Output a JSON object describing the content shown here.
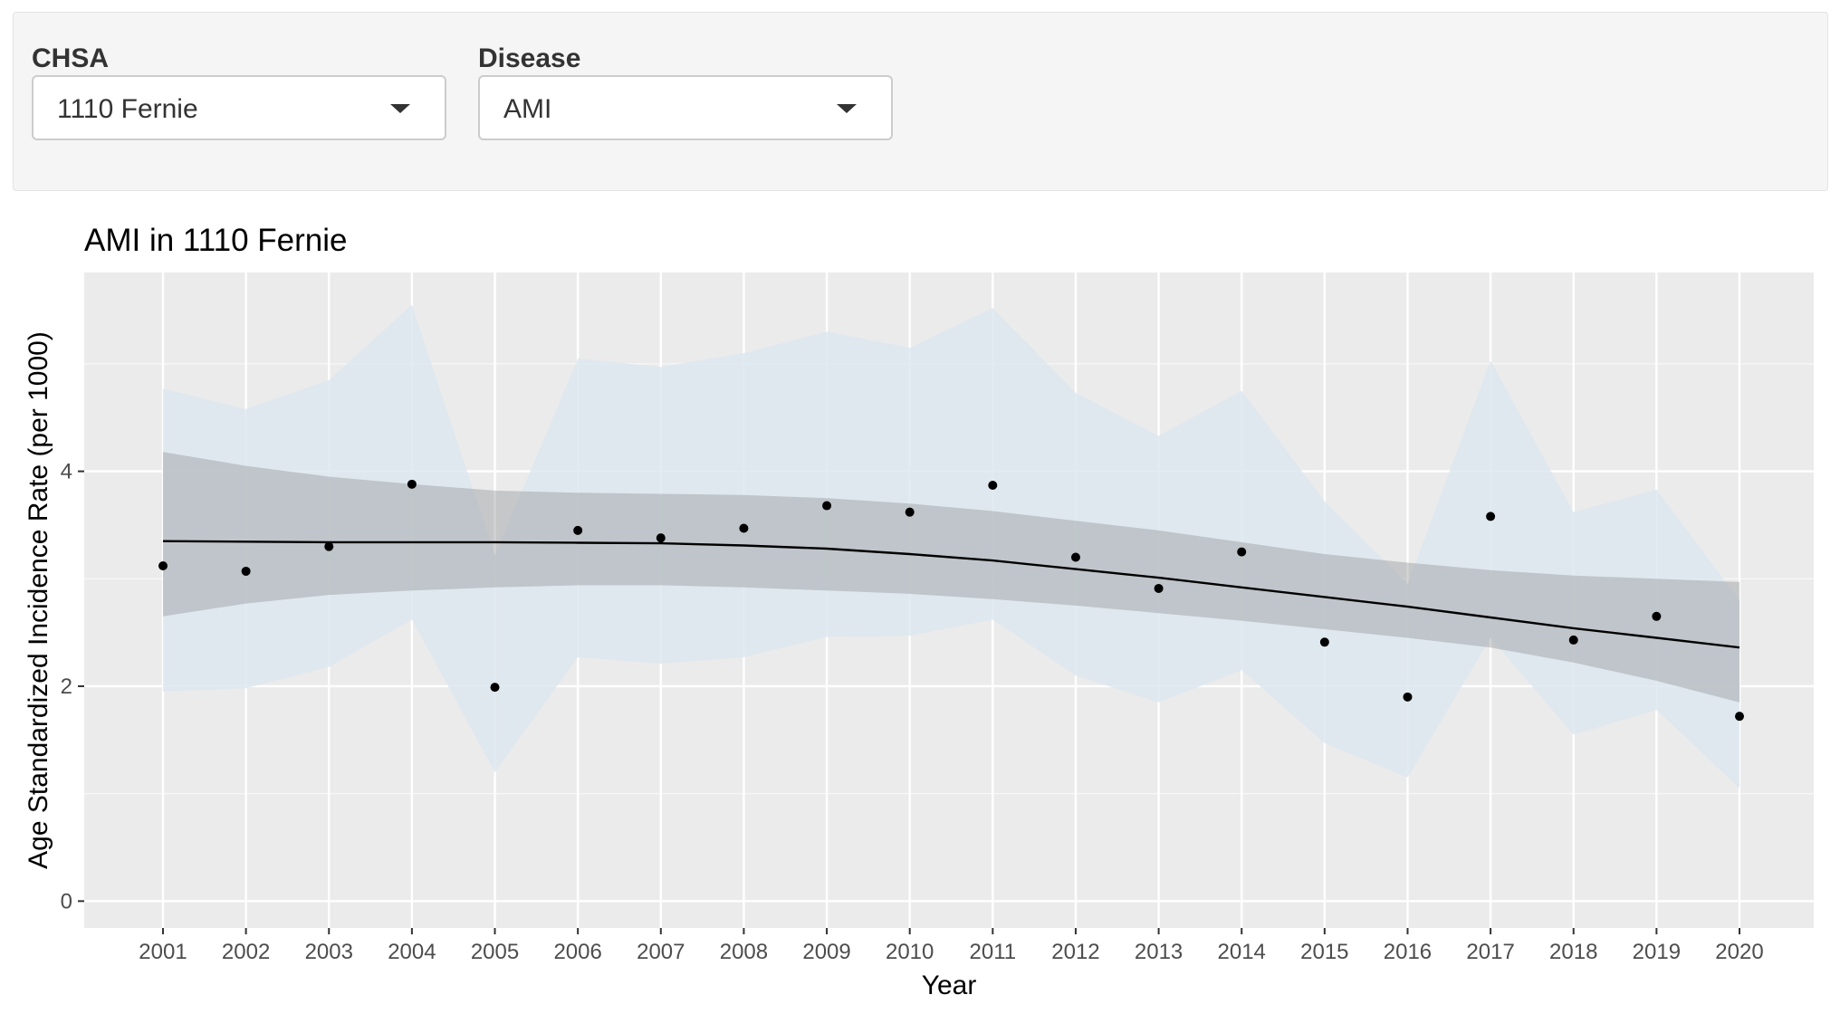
{
  "controls": {
    "chsa": {
      "label": "CHSA",
      "value": "1110 Fernie",
      "icon": "chevron-down-icon"
    },
    "disease": {
      "label": "Disease",
      "value": "AMI",
      "icon": "chevron-down-icon"
    }
  },
  "colors": {
    "panel_bg": "#f5f5f5",
    "plot_bg": "#ebebeb",
    "grid": "#ffffff",
    "band": "#dde7ee",
    "ribbon": "#8f9294",
    "point": "#000000"
  },
  "chart_data": {
    "type": "scatter",
    "title": "AMI in 1110 Fernie",
    "xlabel": "Year",
    "ylabel": "Age Standardized Incidence Rate (per 1000)",
    "ylim": [
      -0.25,
      5.85
    ],
    "yticks": [
      0,
      2,
      4
    ],
    "grid": true,
    "x": [
      "2001",
      "2002",
      "2003",
      "2004",
      "2005",
      "2006",
      "2007",
      "2008",
      "2009",
      "2010",
      "2011",
      "2012",
      "2013",
      "2014",
      "2015",
      "2016",
      "2017",
      "2018",
      "2019",
      "2020"
    ],
    "series": [
      {
        "kind": "points",
        "values": [
          3.12,
          3.07,
          3.3,
          3.88,
          1.99,
          3.45,
          3.38,
          3.47,
          3.68,
          3.62,
          3.87,
          3.2,
          2.91,
          3.25,
          2.41,
          1.9,
          3.58,
          2.43,
          2.65,
          1.72
        ]
      },
      {
        "kind": "ci_band",
        "lower": [
          1.95,
          1.98,
          2.18,
          2.62,
          1.2,
          2.27,
          2.21,
          2.27,
          2.46,
          2.47,
          2.62,
          2.1,
          1.85,
          2.15,
          1.47,
          1.15,
          2.45,
          1.55,
          1.78,
          1.05
        ],
        "upper": [
          4.77,
          4.58,
          4.85,
          5.55,
          3.22,
          5.05,
          4.97,
          5.1,
          5.3,
          5.15,
          5.52,
          4.73,
          4.33,
          4.75,
          3.72,
          2.95,
          5.03,
          3.62,
          3.83,
          2.8
        ]
      },
      {
        "kind": "smooth",
        "values": [
          3.35,
          3.345,
          3.34,
          3.34,
          3.34,
          3.335,
          3.33,
          3.31,
          3.28,
          3.23,
          3.17,
          3.09,
          3.01,
          2.92,
          2.83,
          2.74,
          2.64,
          2.54,
          2.45,
          2.36
        ],
        "lower": [
          2.65,
          2.77,
          2.85,
          2.89,
          2.92,
          2.94,
          2.94,
          2.92,
          2.89,
          2.86,
          2.81,
          2.75,
          2.68,
          2.61,
          2.53,
          2.45,
          2.36,
          2.22,
          2.05,
          1.85
        ],
        "upper": [
          4.18,
          4.05,
          3.95,
          3.88,
          3.82,
          3.8,
          3.79,
          3.78,
          3.75,
          3.7,
          3.63,
          3.54,
          3.45,
          3.34,
          3.23,
          3.15,
          3.08,
          3.03,
          3.0,
          2.97
        ]
      }
    ]
  }
}
